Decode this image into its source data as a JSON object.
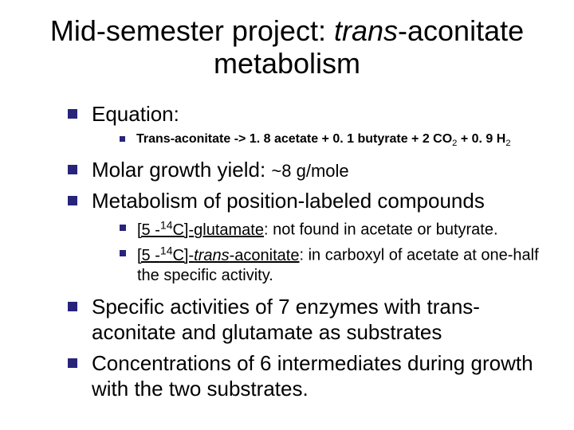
{
  "title": {
    "pre": "Mid-semester project: ",
    "italic": "trans",
    "post": "-aconitate metabolism"
  },
  "bullets": {
    "equation_label": "Equation:",
    "equation_detail_pre": "Trans-aconitate -> 1. 8 acetate + 0. 1 butyrate + 2 CO",
    "equation_detail_sub1": "2",
    "equation_detail_mid": " + 0. 9 H",
    "equation_detail_sub2": "2",
    "molar_pre": "Molar growth yield: ",
    "molar_val": "~8 g/mole",
    "metabolism": "Metabolism of position-labeled compounds",
    "glutamate_bracket_open": "[5 -",
    "glutamate_sup": "14",
    "glutamate_bracket_close": "C]-",
    "glutamate_word": "glutamate",
    "glutamate_rest": ": not found in acetate or butyrate.",
    "aconitate_bracket_open": "[5 -",
    "aconitate_sup": "14",
    "aconitate_bracket_close": "C]-",
    "aconitate_italic": "trans",
    "aconitate_word": "-aconitate",
    "aconitate_rest": ": in carboxyl of acetate at one-half the specific activity.",
    "specific": "Specific activities of 7 enzymes with trans-aconitate and glutamate as substrates",
    "concentrations": "Concentrations of 6 intermediates during growth with the two substrates."
  },
  "colors": {
    "bullet": "#27247a",
    "text": "#000000",
    "bg": "#ffffff"
  }
}
